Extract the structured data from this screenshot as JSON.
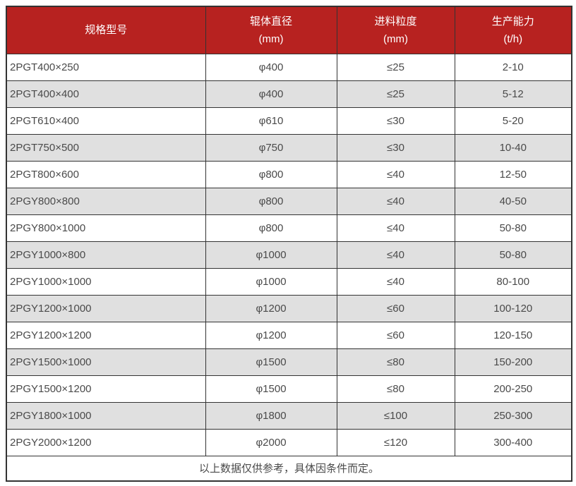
{
  "colors": {
    "header_bg": "#b72220",
    "header_text": "#ffffff",
    "alt_row_bg": "#e0e0e0",
    "border": "#333333",
    "text": "#4a4a4a"
  },
  "table": {
    "headers": [
      {
        "line1": "规格型号",
        "line2": ""
      },
      {
        "line1": "辊体直径",
        "line2": "(mm)"
      },
      {
        "line1": "进料粒度",
        "line2": "(mm)"
      },
      {
        "line1": "生产能力",
        "line2": "(t/h)"
      }
    ],
    "rows": [
      [
        "2PGT400×250",
        "φ400",
        "≤25",
        "2-10"
      ],
      [
        "2PGT400×400",
        "φ400",
        "≤25",
        "5-12"
      ],
      [
        "2PGT610×400",
        "φ610",
        "≤30",
        "5-20"
      ],
      [
        "2PGT750×500",
        "φ750",
        "≤30",
        "10-40"
      ],
      [
        "2PGT800×600",
        "φ800",
        "≤40",
        "12-50"
      ],
      [
        "2PGY800×800",
        "φ800",
        "≤40",
        "40-50"
      ],
      [
        "2PGY800×1000",
        "φ800",
        "≤40",
        "50-80"
      ],
      [
        "2PGY1000×800",
        "φ1000",
        "≤40",
        "50-80"
      ],
      [
        "2PGY1000×1000",
        "φ1000",
        "≤40",
        "80-100"
      ],
      [
        "2PGY1200×1000",
        "φ1200",
        "≤60",
        "100-120"
      ],
      [
        "2PGY1200×1200",
        "φ1200",
        "≤60",
        "120-150"
      ],
      [
        "2PGY1500×1000",
        "φ1500",
        "≤80",
        "150-200"
      ],
      [
        "2PGY1500×1200",
        "φ1500",
        "≤80",
        "200-250"
      ],
      [
        "2PGY1800×1000",
        "φ1800",
        "≤100",
        "250-300"
      ],
      [
        "2PGY2000×1200",
        "φ2000",
        "≤120",
        "300-400"
      ]
    ],
    "footer": "以上数据仅供参考，具体因条件而定。"
  }
}
